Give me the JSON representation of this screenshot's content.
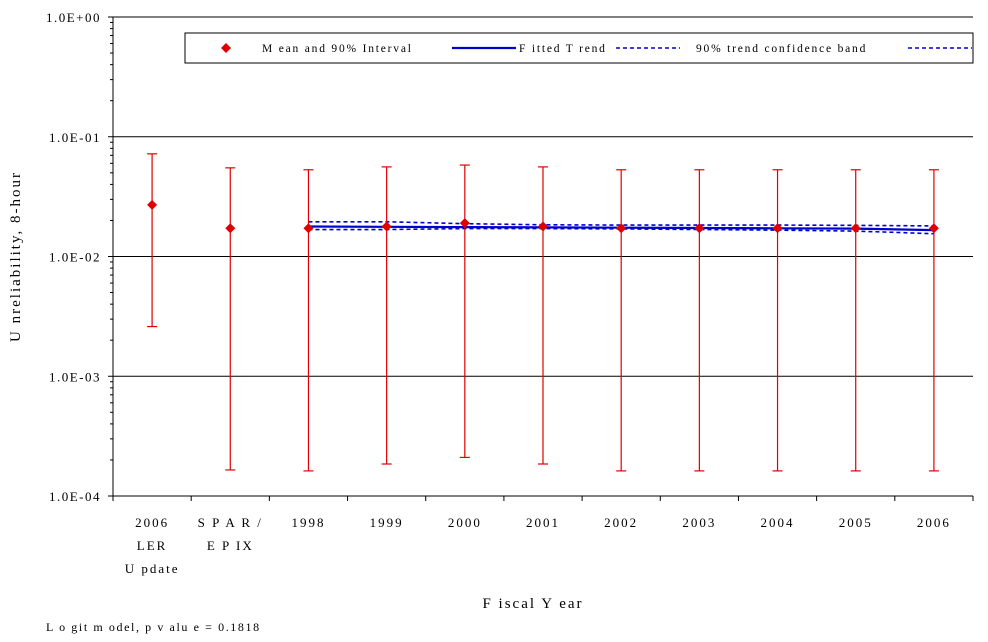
{
  "chart_data": {
    "type": "scatter",
    "yscale": "log",
    "ylim": [
      0.0001,
      1
    ],
    "yticks": [
      {
        "value": 1,
        "label": "1.0E+00"
      },
      {
        "value": 0.1,
        "label": "1.0E-01"
      },
      {
        "value": 0.01,
        "label": "1.0E-02"
      },
      {
        "value": 0.001,
        "label": "1.0E-03"
      },
      {
        "value": 0.0001,
        "label": "1.0E-04"
      }
    ],
    "grid": "horizontal",
    "xlabel": "F iscal Y ear",
    "ylabel": "U nreliability, 8-hour",
    "categories": [
      [
        "2006",
        "LER",
        "U pdate"
      ],
      [
        "S P A R /",
        "E P IX"
      ],
      [
        "1998"
      ],
      [
        "1999"
      ],
      [
        "2000"
      ],
      [
        "2001"
      ],
      [
        "2002"
      ],
      [
        "2003"
      ],
      [
        "2004"
      ],
      [
        "2005"
      ],
      [
        "2006"
      ]
    ],
    "legend": {
      "position": "top",
      "items": [
        {
          "label": "M ean and 90%  Interval",
          "marker": "diamond",
          "color": "#e00000"
        },
        {
          "label": "F itted T rend",
          "marker": "solid-line",
          "color": "#0000cc"
        },
        {
          "label": "90%  trend confidence band",
          "marker": "dashed-line",
          "color": "#0000cc"
        }
      ]
    },
    "series": [
      {
        "name": "M ean and 90%  Interval",
        "color": "#e00000",
        "mean": [
          0.027,
          0.0172,
          0.0172,
          0.0178,
          0.019,
          0.0178,
          0.0172,
          0.0172,
          0.0172,
          0.0172,
          0.0172
        ],
        "lower": [
          0.0026,
          0.000165,
          0.000162,
          0.000185,
          0.00021,
          0.000185,
          0.000162,
          0.000162,
          0.000162,
          0.000162,
          0.000162
        ],
        "upper": [
          0.072,
          0.055,
          0.053,
          0.056,
          0.058,
          0.056,
          0.053,
          0.053,
          0.053,
          0.053,
          0.053
        ]
      },
      {
        "name": "F itted T rend",
        "color": "#0000cc",
        "start_category": 2,
        "values": [
          0.0178,
          0.0177,
          0.0176,
          0.0175,
          0.0174,
          0.0173,
          0.0172,
          0.0171,
          0.0166
        ]
      },
      {
        "name": "90%  trend confidence band",
        "color": "#0000cc",
        "start_category": 2,
        "upper": [
          0.0195,
          0.0195,
          0.0188,
          0.0184,
          0.0183,
          0.0183,
          0.0183,
          0.0182,
          0.018
        ],
        "lower": [
          0.0168,
          0.0168,
          0.0171,
          0.0171,
          0.017,
          0.0168,
          0.0166,
          0.0163,
          0.0155
        ]
      }
    ],
    "annotations": [
      "L o git m odel, p  v alu e  =  0.1818"
    ]
  }
}
